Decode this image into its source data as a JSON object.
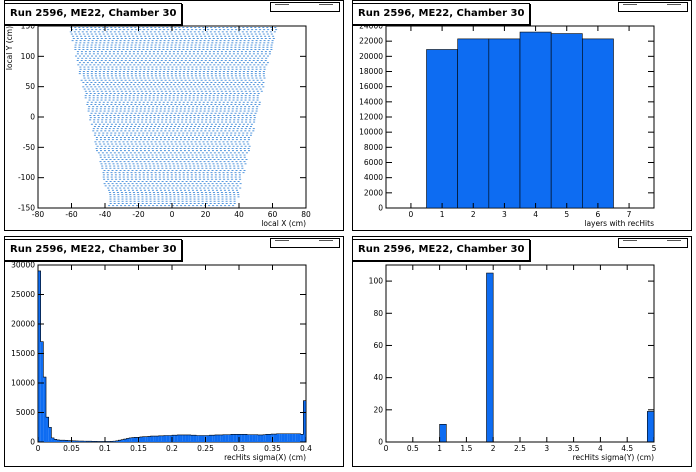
{
  "chart_data": [
    {
      "id": "pad-tl",
      "type": "scatter",
      "title": "Run 2596, ME22, Chamber 30",
      "xlabel": "local X (cm)",
      "ylabel": "local Y (cm)",
      "xlim": [
        -80,
        80
      ],
      "ylim": [
        -150,
        150
      ],
      "xticks": [
        -80,
        -60,
        -40,
        -20,
        0,
        20,
        40,
        60,
        80
      ],
      "yticks": [
        -150,
        -100,
        -50,
        0,
        50,
        100,
        150
      ],
      "shape": {
        "description_source": "trapezoid region of recHit positions",
        "top_y": 150,
        "top_xmin": -62,
        "top_xmax": 62,
        "bottom_y": -148,
        "bottom_xmin": -38,
        "bottom_xmax": 38
      },
      "marker_color": "#1f77d4"
    },
    {
      "id": "pad-tr",
      "type": "bar",
      "title": "Run 2596, ME22, Chamber 30",
      "xlabel": "layers with recHits",
      "ylabel": "",
      "xlim": [
        -0.8,
        7.8
      ],
      "ylim": [
        0,
        24000
      ],
      "xticks": [
        0,
        1,
        2,
        3,
        4,
        5,
        6,
        7
      ],
      "yticks": [
        0,
        2000,
        4000,
        6000,
        8000,
        10000,
        12000,
        14000,
        16000,
        18000,
        20000,
        22000,
        24000
      ],
      "bin_edges": [
        0.5,
        1.5,
        2.5,
        3.5,
        4.5,
        5.5,
        6.5
      ],
      "values": [
        20900,
        22300,
        22300,
        23200,
        23000,
        22300
      ],
      "fill_color": "#0d6cf2"
    },
    {
      "id": "pad-bl",
      "type": "bar",
      "title": "Run 2596, ME22, Chamber 30",
      "xlabel": "recHits sigma(X) (cm)",
      "ylabel": "",
      "xlim": [
        0,
        0.4
      ],
      "ylim": [
        0,
        30000
      ],
      "xticks": [
        0,
        0.05,
        0.1,
        0.15,
        0.2,
        0.25,
        0.3,
        0.35,
        0.4
      ],
      "xticklabels": [
        "0",
        "0.05",
        "0.1",
        "0.15",
        "0.2",
        "0.25",
        "0.3",
        "0.35",
        "0.4"
      ],
      "yticks": [
        0,
        5000,
        10000,
        15000,
        20000,
        25000,
        30000
      ],
      "bin_width": 0.004,
      "values": [
        29000,
        17000,
        11000,
        4200,
        2500,
        700,
        450,
        350,
        300,
        300,
        280,
        250,
        220,
        200,
        180,
        170,
        160,
        150,
        140,
        130,
        120,
        110,
        100,
        100,
        100,
        100,
        100,
        120,
        150,
        200,
        300,
        400,
        500,
        600,
        700,
        750,
        800,
        800,
        850,
        900,
        900,
        950,
        1000,
        1000,
        1000,
        1050,
        1050,
        1100,
        1100,
        1100,
        1150,
        1150,
        1200,
        1200,
        1200,
        1200,
        1200,
        1150,
        1150,
        1100,
        1100,
        1100,
        1100,
        1100,
        1150,
        1150,
        1200,
        1200,
        1200,
        1250,
        1250,
        1250,
        1300,
        1300,
        1300,
        1300,
        1300,
        1300,
        1250,
        1250,
        1250,
        1250,
        1200,
        1200,
        1250,
        1300,
        1300,
        1350,
        1350,
        1400,
        1400,
        1400,
        1400,
        1400,
        1400,
        1400,
        1400,
        1400,
        1300,
        7000
      ],
      "fill_color": "#0d6cf2"
    },
    {
      "id": "pad-br",
      "type": "bar",
      "title": "Run 2596, ME22, Chamber 30",
      "xlabel": "recHits sigma(Y) (cm)",
      "ylabel": "",
      "xlim": [
        0,
        5
      ],
      "ylim": [
        0,
        110
      ],
      "xticks": [
        0,
        0.5,
        1,
        1.5,
        2,
        2.5,
        3,
        3.5,
        4,
        4.5,
        5
      ],
      "xticklabels": [
        "0",
        "0.5",
        "1",
        "1.5",
        "2",
        "2.5",
        "3",
        "3.5",
        "4",
        "4.5",
        "5"
      ],
      "yticks": [
        0,
        20,
        40,
        60,
        80,
        100
      ],
      "bins": [
        {
          "x0": 1.0,
          "x1": 1.125,
          "value": 11
        },
        {
          "x0": 1.875,
          "x1": 2.0,
          "value": 105
        },
        {
          "x0": 4.875,
          "x1": 5.0,
          "value": 19
        }
      ],
      "fill_color": "#0d6cf2"
    }
  ]
}
